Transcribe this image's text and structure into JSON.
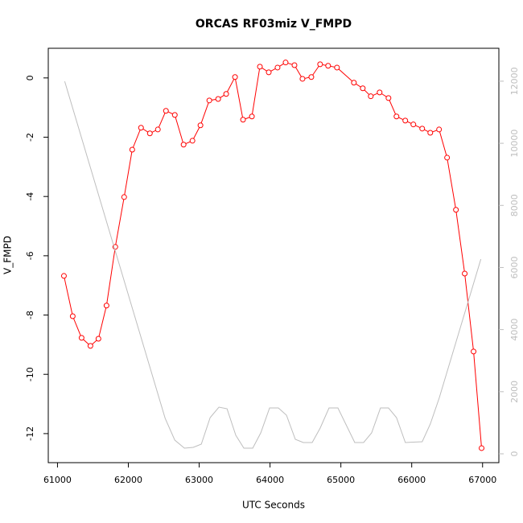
{
  "chart_data": {
    "type": "line",
    "title": "ORCAS RF03miz V_FMPD",
    "xlabel": "UTC Seconds",
    "ylabel": "V_FMPD",
    "xlim": [
      60870,
      67230
    ],
    "ylim": [
      -12.98,
      1.0
    ],
    "y2lim": [
      -285,
      13060
    ],
    "xticks": [
      61000,
      62000,
      63000,
      64000,
      65000,
      66000,
      67000
    ],
    "yticks": [
      0,
      -2,
      -4,
      -6,
      -8,
      -10,
      -12
    ],
    "y2ticks": [
      0,
      2000,
      4000,
      6000,
      8000,
      10000,
      12000
    ],
    "y2color": "#bebebe",
    "series": [
      {
        "color": "#ff0000",
        "markers": true,
        "x": [
          61091,
          61215,
          61340,
          61465,
          61578,
          61692,
          61816,
          61941,
          62055,
          62179,
          62304,
          62417,
          62531,
          62656,
          62780,
          62905,
          63018,
          63143,
          63268,
          63381,
          63506,
          63619,
          63744,
          63857,
          63982,
          64106,
          64220,
          64345,
          64458,
          64583,
          64707,
          64820,
          64945,
          65184,
          65309,
          65422,
          65547,
          65672,
          65785,
          65909,
          66023,
          66148,
          66262,
          66386,
          66499,
          66624,
          66748,
          66873,
          66986
        ],
        "values": [
          -6.68,
          -8.04,
          -8.77,
          -9.04,
          -8.8,
          -7.68,
          -5.7,
          -4.02,
          -2.42,
          -1.68,
          -1.87,
          -1.74,
          -1.11,
          -1.25,
          -2.25,
          -2.12,
          -1.6,
          -0.76,
          -0.71,
          -0.54,
          0.03,
          -1.41,
          -1.3,
          0.38,
          0.19,
          0.35,
          0.52,
          0.43,
          -0.03,
          0.03,
          0.46,
          0.41,
          0.35,
          -0.16,
          -0.35,
          -0.62,
          -0.49,
          -0.68,
          -1.3,
          -1.44,
          -1.57,
          -1.71,
          -1.85,
          -1.74,
          -2.69,
          -4.45,
          -6.6,
          -9.23,
          -12.49
        ]
      },
      {
        "color": "#bebebe",
        "axis": "y2",
        "x": [
          61102,
          62520,
          62656,
          62792,
          62916,
          63030,
          63155,
          63279,
          63393,
          63517,
          63631,
          63756,
          63869,
          63994,
          64118,
          64232,
          64357,
          64470,
          64595,
          64708,
          64833,
          64958,
          65196,
          65321,
          65434,
          65559,
          65672,
          65785,
          65910,
          66148,
          66262,
          66387,
          66976
        ],
        "values": [
          11995,
          1140,
          440,
          181,
          207,
          311,
          1166,
          1503,
          1451,
          596,
          181,
          181,
          674,
          1477,
          1477,
          1244,
          466,
          363,
          363,
          829,
          1477,
          1477,
          363,
          363,
          674,
          1477,
          1477,
          1166,
          363,
          389,
          959,
          1788,
          6269
        ]
      }
    ]
  }
}
